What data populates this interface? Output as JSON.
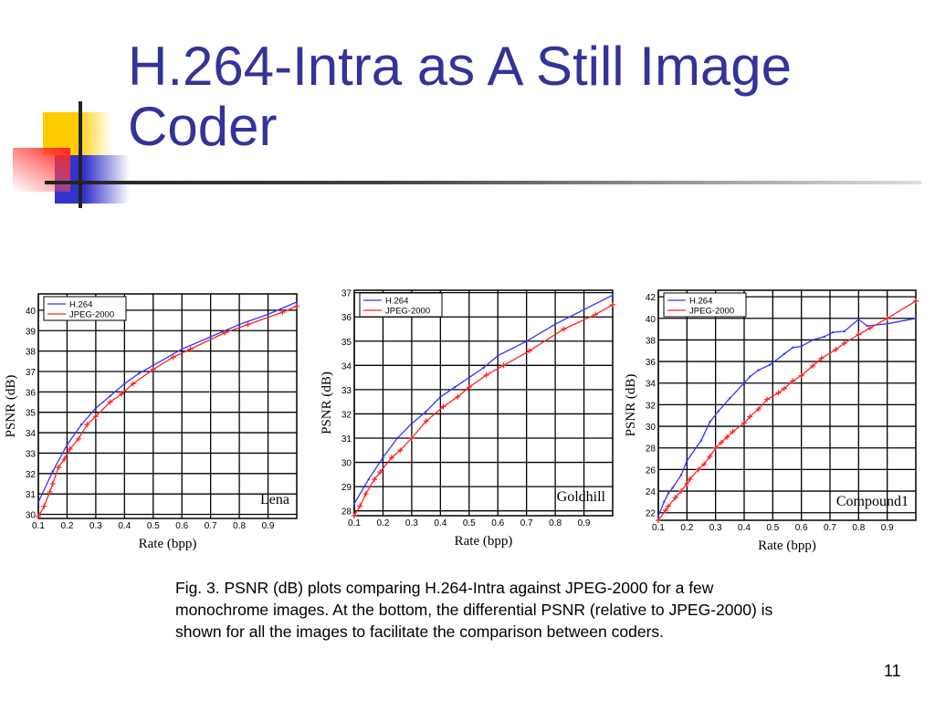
{
  "slide": {
    "title": "H.264-Intra as A Still Image Coder",
    "caption": "Fig. 3. PSNR (dB) plots comparing H.264-Intra against JPEG-2000 for a few monochrome images. At the bottom, the differential PSNR (relative to JPEG-2000) is shown for all the images to facilitate the comparison between coders.",
    "page_number": "11",
    "colors": {
      "title": "#333399",
      "h264": "#3333ff",
      "jpeg2000": "#ff2222"
    }
  },
  "chart_data": [
    {
      "type": "line",
      "annotation": "Lena",
      "xlabel": "Rate (bpp)",
      "ylabel": "PSNR (dB)",
      "xlim": [
        0.1,
        1.0
      ],
      "ylim": [
        29.8,
        40.8
      ],
      "xticks": [
        "0.1",
        "0.2",
        "0.3",
        "0.4",
        "0.5",
        "0.6",
        "0.7",
        "0.8",
        "0.9"
      ],
      "yticks": [
        30,
        31,
        32,
        33,
        34,
        35,
        36,
        37,
        38,
        39,
        40
      ],
      "grid": true,
      "legend": "top-left",
      "series": [
        {
          "name": "H.264",
          "x": [
            0.1,
            0.15,
            0.2,
            0.25,
            0.3,
            0.35,
            0.4,
            0.45,
            0.5,
            0.6,
            0.7,
            0.8,
            0.9,
            1.0
          ],
          "y": [
            30.6,
            32.1,
            33.4,
            34.4,
            35.2,
            35.8,
            36.4,
            36.9,
            37.3,
            38.1,
            38.7,
            39.3,
            39.8,
            40.4
          ]
        },
        {
          "name": "JPEG-2000",
          "x": [
            0.1,
            0.12,
            0.14,
            0.15,
            0.17,
            0.19,
            0.21,
            0.24,
            0.27,
            0.3,
            0.35,
            0.39,
            0.43,
            0.5,
            0.57,
            0.63,
            0.75,
            0.83,
            0.95,
            1.0
          ],
          "y": [
            29.9,
            30.4,
            31.1,
            31.5,
            32.3,
            32.7,
            33.2,
            33.7,
            34.4,
            34.8,
            35.5,
            35.9,
            36.4,
            37.1,
            37.7,
            38.1,
            38.9,
            39.3,
            39.9,
            40.2
          ]
        }
      ]
    },
    {
      "type": "line",
      "annotation": "Goldhill",
      "xlabel": "Rate (bpp)",
      "ylabel": "PSNR (dB)",
      "xlim": [
        0.1,
        1.0
      ],
      "ylim": [
        27.8,
        37.1
      ],
      "xticks": [
        "0.1",
        "0.2",
        "0.3",
        "0.4",
        "0.5",
        "0.6",
        "0.7",
        "0.8",
        "0.9"
      ],
      "yticks": [
        28,
        29,
        30,
        31,
        32,
        33,
        34,
        35,
        36,
        37
      ],
      "grid": true,
      "legend": "top-left",
      "series": [
        {
          "name": "H.264",
          "x": [
            0.1,
            0.15,
            0.2,
            0.25,
            0.3,
            0.35,
            0.4,
            0.45,
            0.5,
            0.55,
            0.6,
            0.7,
            0.8,
            0.9,
            1.0
          ],
          "y": [
            28.3,
            29.3,
            30.2,
            31.0,
            31.6,
            32.1,
            32.7,
            33.1,
            33.5,
            33.9,
            34.4,
            35.0,
            35.7,
            36.3,
            36.9
          ]
        },
        {
          "name": "JPEG-2000",
          "x": [
            0.1,
            0.12,
            0.14,
            0.17,
            0.19,
            0.23,
            0.26,
            0.3,
            0.35,
            0.41,
            0.46,
            0.5,
            0.56,
            0.62,
            0.71,
            0.83,
            0.94,
            1.0
          ],
          "y": [
            27.8,
            28.2,
            28.7,
            29.3,
            29.6,
            30.2,
            30.5,
            31.0,
            31.7,
            32.3,
            32.7,
            33.1,
            33.6,
            34.0,
            34.6,
            35.5,
            36.1,
            36.5
          ]
        }
      ]
    },
    {
      "type": "line",
      "annotation": "Compound1",
      "xlabel": "Rate (bpp)",
      "ylabel": "PSNR (dB)",
      "xlim": [
        0.1,
        1.0
      ],
      "ylim": [
        21.3,
        42.6
      ],
      "xticks": [
        "0.1",
        "0.2",
        "0.3",
        "0.4",
        "0.5",
        "0.6",
        "0.7",
        "0.8",
        "0.9"
      ],
      "yticks": [
        22,
        24,
        26,
        28,
        30,
        32,
        34,
        36,
        38,
        40,
        42
      ],
      "grid": true,
      "legend": "top-left",
      "series": [
        {
          "name": "H.264",
          "x": [
            0.1,
            0.12,
            0.135,
            0.15,
            0.18,
            0.2,
            0.25,
            0.28,
            0.31,
            0.35,
            0.4,
            0.42,
            0.45,
            0.49,
            0.54,
            0.57,
            0.6,
            0.64,
            0.68,
            0.71,
            0.75,
            0.8,
            0.83,
            0.9,
            1.0
          ],
          "y": [
            21.7,
            23.0,
            23.8,
            24.3,
            25.5,
            26.8,
            28.7,
            30.4,
            31.4,
            32.6,
            34.0,
            34.6,
            35.2,
            35.7,
            36.7,
            37.3,
            37.4,
            38.0,
            38.3,
            38.7,
            38.8,
            39.9,
            39.3,
            39.5,
            40.0
          ]
        },
        {
          "name": "JPEG-2000",
          "x": [
            0.1,
            0.125,
            0.135,
            0.16,
            0.18,
            0.2,
            0.21,
            0.24,
            0.26,
            0.28,
            0.3,
            0.32,
            0.34,
            0.36,
            0.4,
            0.42,
            0.45,
            0.48,
            0.52,
            0.54,
            0.57,
            0.6,
            0.64,
            0.67,
            0.72,
            0.75,
            0.8,
            0.84,
            0.9,
            1.0
          ],
          "y": [
            21.3,
            22.2,
            22.6,
            23.4,
            24.0,
            24.7,
            25.1,
            26.0,
            26.5,
            27.2,
            28.0,
            28.5,
            29.0,
            29.5,
            30.3,
            30.9,
            31.6,
            32.5,
            33.1,
            33.5,
            34.2,
            34.7,
            35.6,
            36.3,
            37.1,
            37.7,
            38.5,
            39.1,
            40.0,
            41.6
          ]
        }
      ]
    }
  ]
}
